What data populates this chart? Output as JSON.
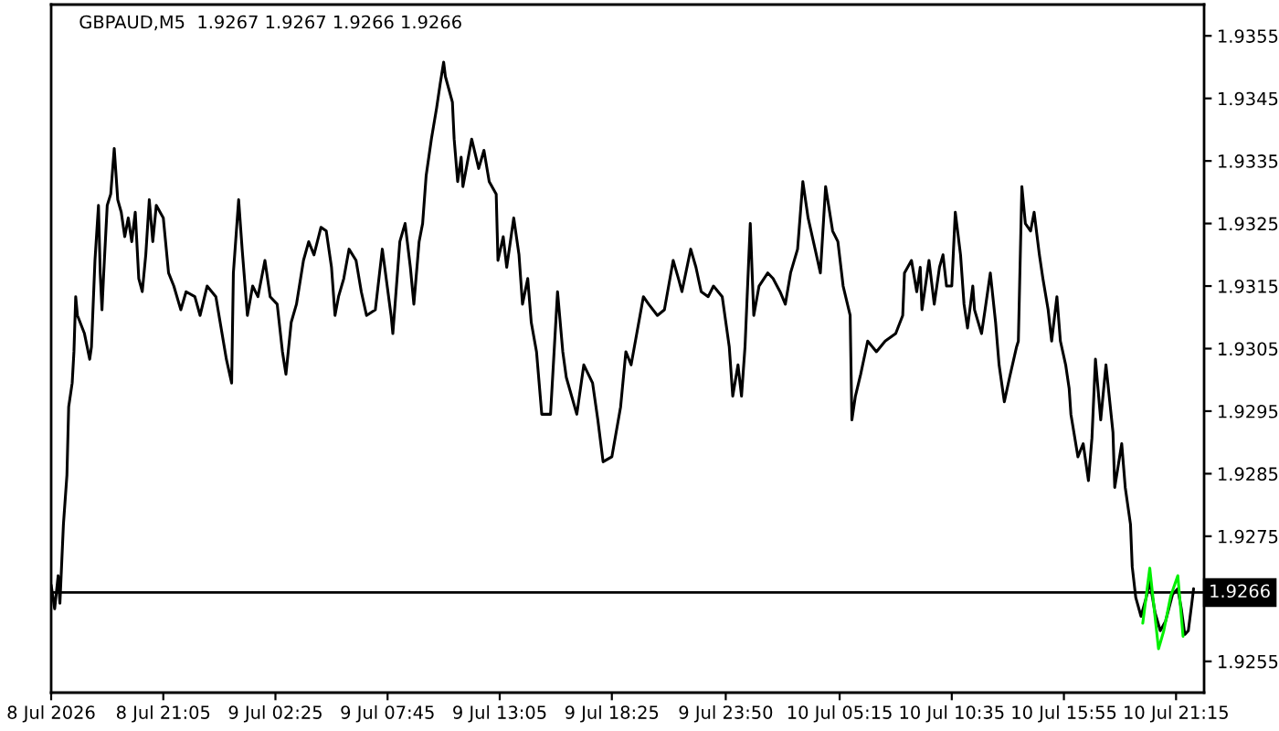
{
  "chart_data": {
    "type": "line",
    "title": "GBPAUD,M5  1.9267 1.9267 1.9266 1.9266",
    "xlim": [
      "2026-07-08T15:45",
      "2026-07-10T22:35"
    ],
    "xticks": [
      {
        "value": "2026-07-08T15:45",
        "label": "8 Jul 2026"
      },
      {
        "value": "2026-07-08T21:05",
        "label": "8 Jul 21:05"
      },
      {
        "value": "2026-07-09T02:25",
        "label": "9 Jul 02:25"
      },
      {
        "value": "2026-07-09T07:45",
        "label": "9 Jul 07:45"
      },
      {
        "value": "2026-07-09T13:05",
        "label": "9 Jul 13:05"
      },
      {
        "value": "2026-07-09T18:25",
        "label": "9 Jul 18:25"
      },
      {
        "value": "2026-07-09T23:50",
        "label": "9 Jul 23:50"
      },
      {
        "value": "2026-07-10T05:15",
        "label": "10 Jul 05:15"
      },
      {
        "value": "2026-07-10T10:35",
        "label": "10 Jul 10:35"
      },
      {
        "value": "2026-07-10T15:55",
        "label": "10 Jul 15:55"
      },
      {
        "value": "2026-07-10T21:15",
        "label": "10 Jul 21:15"
      }
    ],
    "ylim": [
      1.925,
      1.936
    ],
    "yticks": [
      1.9255,
      1.9275,
      1.9285,
      1.9295,
      1.9305,
      1.9315,
      1.9325,
      1.9335,
      1.9345,
      1.9355
    ],
    "ref_lines": [
      {
        "axis": "y",
        "value": 1.9266,
        "label": "1.9266",
        "color": "#000000"
      }
    ],
    "series": [
      {
        "color": "#000000",
        "x": [
          "2026-07-08T15:45",
          "2026-07-08T15:55",
          "2026-07-08T16:05",
          "2026-07-08T16:10",
          "2026-07-08T16:20",
          "2026-07-08T16:30",
          "2026-07-08T16:35",
          "2026-07-08T16:45",
          "2026-07-08T16:50",
          "2026-07-08T16:55",
          "2026-07-08T17:00",
          "2026-07-08T17:20",
          "2026-07-08T17:35",
          "2026-07-08T17:40",
          "2026-07-08T17:50",
          "2026-07-08T18:00",
          "2026-07-08T18:05",
          "2026-07-08T18:10",
          "2026-07-08T18:15",
          "2026-07-08T18:25",
          "2026-07-08T18:35",
          "2026-07-08T18:45",
          "2026-07-08T18:55",
          "2026-07-08T19:05",
          "2026-07-08T19:15",
          "2026-07-08T19:25",
          "2026-07-08T19:35",
          "2026-07-08T19:45",
          "2026-07-08T19:55",
          "2026-07-08T20:05",
          "2026-07-08T20:15",
          "2026-07-08T20:25",
          "2026-07-08T20:35",
          "2026-07-08T20:45",
          "2026-07-08T21:05",
          "2026-07-08T21:20",
          "2026-07-08T21:35",
          "2026-07-08T21:55",
          "2026-07-08T22:10",
          "2026-07-08T22:35",
          "2026-07-08T22:50",
          "2026-07-08T23:10",
          "2026-07-08T23:35",
          "2026-07-08T23:50",
          "2026-07-09T00:05",
          "2026-07-09T00:20",
          "2026-07-09T00:25",
          "2026-07-09T00:40",
          "2026-07-09T00:50",
          "2026-07-09T01:05",
          "2026-07-09T01:20",
          "2026-07-09T01:35",
          "2026-07-09T01:55",
          "2026-07-09T02:10",
          "2026-07-09T02:30",
          "2026-07-09T02:45",
          "2026-07-09T02:55",
          "2026-07-09T03:10",
          "2026-07-09T03:25",
          "2026-07-09T03:45",
          "2026-07-09T04:00",
          "2026-07-09T04:15",
          "2026-07-09T04:35",
          "2026-07-09T04:50",
          "2026-07-09T05:05",
          "2026-07-09T05:15",
          "2026-07-09T05:25",
          "2026-07-09T05:40",
          "2026-07-09T05:55",
          "2026-07-09T06:15",
          "2026-07-09T06:30",
          "2026-07-09T06:45",
          "2026-07-09T07:10",
          "2026-07-09T07:30",
          "2026-07-09T07:55",
          "2026-07-09T08:00",
          "2026-07-09T08:20",
          "2026-07-09T08:35",
          "2026-07-09T08:50",
          "2026-07-09T09:00",
          "2026-07-09T09:15",
          "2026-07-09T09:25",
          "2026-07-09T09:35",
          "2026-07-09T09:50",
          "2026-07-09T10:05",
          "2026-07-09T10:15",
          "2026-07-09T10:25",
          "2026-07-09T10:30",
          "2026-07-09T10:50",
          "2026-07-09T10:55",
          "2026-07-09T11:05",
          "2026-07-09T11:15",
          "2026-07-09T11:20",
          "2026-07-09T11:45",
          "2026-07-09T12:05",
          "2026-07-09T12:20",
          "2026-07-09T12:35",
          "2026-07-09T12:55",
          "2026-07-09T13:00",
          "2026-07-09T13:15",
          "2026-07-09T13:25",
          "2026-07-09T13:45",
          "2026-07-09T14:00",
          "2026-07-09T14:10",
          "2026-07-09T14:25",
          "2026-07-09T14:35",
          "2026-07-09T14:50",
          "2026-07-09T15:05",
          "2026-07-09T15:30",
          "2026-07-09T15:50",
          "2026-07-09T16:05",
          "2026-07-09T16:15",
          "2026-07-09T16:45",
          "2026-07-09T17:05",
          "2026-07-09T17:30",
          "2026-07-09T17:45",
          "2026-07-09T18:00",
          "2026-07-09T18:25",
          "2026-07-09T18:50",
          "2026-07-09T19:05",
          "2026-07-09T19:20",
          "2026-07-09T19:55",
          "2026-07-09T20:10",
          "2026-07-09T20:35",
          "2026-07-09T20:55",
          "2026-07-09T21:20",
          "2026-07-09T21:35",
          "2026-07-09T21:45",
          "2026-07-09T22:10",
          "2026-07-09T22:25",
          "2026-07-09T22:40",
          "2026-07-09T23:00",
          "2026-07-09T23:15",
          "2026-07-09T23:40",
          "2026-07-10T00:00",
          "2026-07-10T00:10",
          "2026-07-10T00:25",
          "2026-07-10T00:35",
          "2026-07-10T00:45",
          "2026-07-10T01:00",
          "2026-07-10T01:10",
          "2026-07-10T01:25",
          "2026-07-10T01:50",
          "2026-07-10T02:05",
          "2026-07-10T02:25",
          "2026-07-10T02:40",
          "2026-07-10T02:55",
          "2026-07-10T03:15",
          "2026-07-10T03:30",
          "2026-07-10T03:45",
          "2026-07-10T04:05",
          "2026-07-10T04:20",
          "2026-07-10T04:35",
          "2026-07-10T04:55",
          "2026-07-10T05:10",
          "2026-07-10T05:25",
          "2026-07-10T05:45",
          "2026-07-10T05:50",
          "2026-07-10T06:00",
          "2026-07-10T06:15",
          "2026-07-10T06:35",
          "2026-07-10T07:00",
          "2026-07-10T07:25",
          "2026-07-10T07:55",
          "2026-07-10T08:15",
          "2026-07-10T08:20",
          "2026-07-10T08:40",
          "2026-07-10T08:55",
          "2026-07-10T09:05",
          "2026-07-10T09:10",
          "2026-07-10T09:30",
          "2026-07-10T09:45",
          "2026-07-10T10:00",
          "2026-07-10T10:10",
          "2026-07-10T10:20",
          "2026-07-10T10:35",
          "2026-07-10T10:45",
          "2026-07-10T11:00",
          "2026-07-10T11:10",
          "2026-07-10T11:20",
          "2026-07-10T11:35",
          "2026-07-10T11:40",
          "2026-07-10T12:00",
          "2026-07-10T12:10",
          "2026-07-10T12:25",
          "2026-07-10T12:40",
          "2026-07-10T12:50",
          "2026-07-10T13:05",
          "2026-07-10T13:20",
          "2026-07-10T13:40",
          "2026-07-10T13:45",
          "2026-07-10T13:55",
          "2026-07-10T14:05",
          "2026-07-10T14:20",
          "2026-07-10T14:30",
          "2026-07-10T14:45",
          "2026-07-10T14:55",
          "2026-07-10T15:10",
          "2026-07-10T15:20",
          "2026-07-10T15:35",
          "2026-07-10T15:45",
          "2026-07-10T16:00",
          "2026-07-10T16:10",
          "2026-07-10T16:15",
          "2026-07-10T16:35",
          "2026-07-10T16:50",
          "2026-07-10T17:05",
          "2026-07-10T17:15",
          "2026-07-10T17:25",
          "2026-07-10T17:40",
          "2026-07-10T17:55",
          "2026-07-10T18:15",
          "2026-07-10T18:20",
          "2026-07-10T18:40",
          "2026-07-10T18:50",
          "2026-07-10T19:05",
          "2026-07-10T19:10",
          "2026-07-10T19:20",
          "2026-07-10T19:35",
          "2026-07-10T19:50",
          "2026-07-10T20:00",
          "2026-07-10T20:15",
          "2026-07-10T20:30",
          "2026-07-10T20:45",
          "2026-07-10T21:05",
          "2026-07-10T21:20",
          "2026-07-10T21:30",
          "2026-07-10T21:40",
          "2026-07-10T21:50",
          "2026-07-10T22:00",
          "2026-07-10T22:05"
        ],
        "values": [
          1.92672,
          1.92634,
          1.92687,
          1.92643,
          1.92769,
          1.92848,
          1.92957,
          1.92995,
          1.93045,
          1.93133,
          1.93103,
          1.93074,
          1.93033,
          1.93053,
          1.93191,
          1.93279,
          1.93171,
          1.93112,
          1.93171,
          1.93279,
          1.93297,
          1.9337,
          1.93288,
          1.93268,
          1.93229,
          1.93259,
          1.93221,
          1.93268,
          1.93162,
          1.93141,
          1.932,
          1.93288,
          1.93221,
          1.93279,
          1.93259,
          1.93171,
          1.9315,
          1.93112,
          1.93141,
          1.93133,
          1.93103,
          1.9315,
          1.93133,
          1.93083,
          1.93033,
          1.92995,
          1.93171,
          1.93288,
          1.93209,
          1.93103,
          1.9315,
          1.93133,
          1.93191,
          1.93133,
          1.93121,
          1.93045,
          1.93009,
          1.93092,
          1.93121,
          1.93191,
          1.93221,
          1.932,
          1.93244,
          1.93238,
          1.9318,
          1.93103,
          1.93133,
          1.93162,
          1.93209,
          1.93191,
          1.93141,
          1.93103,
          1.93112,
          1.93209,
          1.93103,
          1.93074,
          1.93221,
          1.9325,
          1.9318,
          1.93121,
          1.93221,
          1.9325,
          1.93326,
          1.93385,
          1.93435,
          1.93473,
          1.93508,
          1.93485,
          1.93444,
          1.93385,
          1.93317,
          1.93356,
          1.93309,
          1.93385,
          1.93338,
          1.93367,
          1.93317,
          1.93297,
          1.93191,
          1.93229,
          1.9318,
          1.93259,
          1.932,
          1.93121,
          1.93162,
          1.93092,
          1.93045,
          1.92945,
          1.92945,
          1.93141,
          1.93045,
          1.93004,
          1.92945,
          1.93024,
          1.92995,
          1.92936,
          1.92869,
          1.92877,
          1.92957,
          1.93045,
          1.93024,
          1.93133,
          1.93121,
          1.93103,
          1.93112,
          1.93191,
          1.93162,
          1.93141,
          1.93209,
          1.9318,
          1.93141,
          1.93133,
          1.9315,
          1.93133,
          1.93053,
          1.92974,
          1.93024,
          1.92974,
          1.93053,
          1.9325,
          1.93103,
          1.9315,
          1.93171,
          1.93162,
          1.93141,
          1.93121,
          1.93171,
          1.93209,
          1.93317,
          1.93259,
          1.93209,
          1.93171,
          1.93309,
          1.93238,
          1.93221,
          1.9315,
          1.93103,
          1.92936,
          1.92974,
          1.93009,
          1.93062,
          1.93045,
          1.93062,
          1.93074,
          1.93103,
          1.93171,
          1.93191,
          1.93141,
          1.9318,
          1.93112,
          1.93191,
          1.93121,
          1.9318,
          1.932,
          1.9315,
          1.9315,
          1.93268,
          1.932,
          1.93121,
          1.93083,
          1.9315,
          1.93112,
          1.93074,
          1.93112,
          1.93171,
          1.93092,
          1.93024,
          1.92965,
          1.93004,
          1.93053,
          1.93062,
          1.93309,
          1.9325,
          1.93238,
          1.93268,
          1.932,
          1.93162,
          1.93112,
          1.93062,
          1.93133,
          1.93062,
          1.93024,
          1.92986,
          1.92945,
          1.92877,
          1.92898,
          1.92839,
          1.92907,
          1.93033,
          1.92936,
          1.93024,
          1.92916,
          1.92828,
          1.92898,
          1.92828,
          1.92769,
          1.92701,
          1.92652,
          1.92622,
          1.92652,
          1.92678,
          1.92628,
          1.92599,
          1.92614,
          1.92657,
          1.92666,
          1.92634,
          1.92593,
          1.92599,
          1.92643,
          1.92666
        ]
      },
      {
        "color": "#00f000",
        "x": [
          "2026-07-10T19:40",
          "2026-07-10T20:00",
          "2026-07-10T20:25",
          "2026-07-10T20:40",
          "2026-07-10T21:00",
          "2026-07-10T21:20",
          "2026-07-10T21:35"
        ],
        "values": [
          1.92611,
          1.92699,
          1.9257,
          1.92599,
          1.92655,
          1.92687,
          1.9259
        ]
      }
    ]
  }
}
